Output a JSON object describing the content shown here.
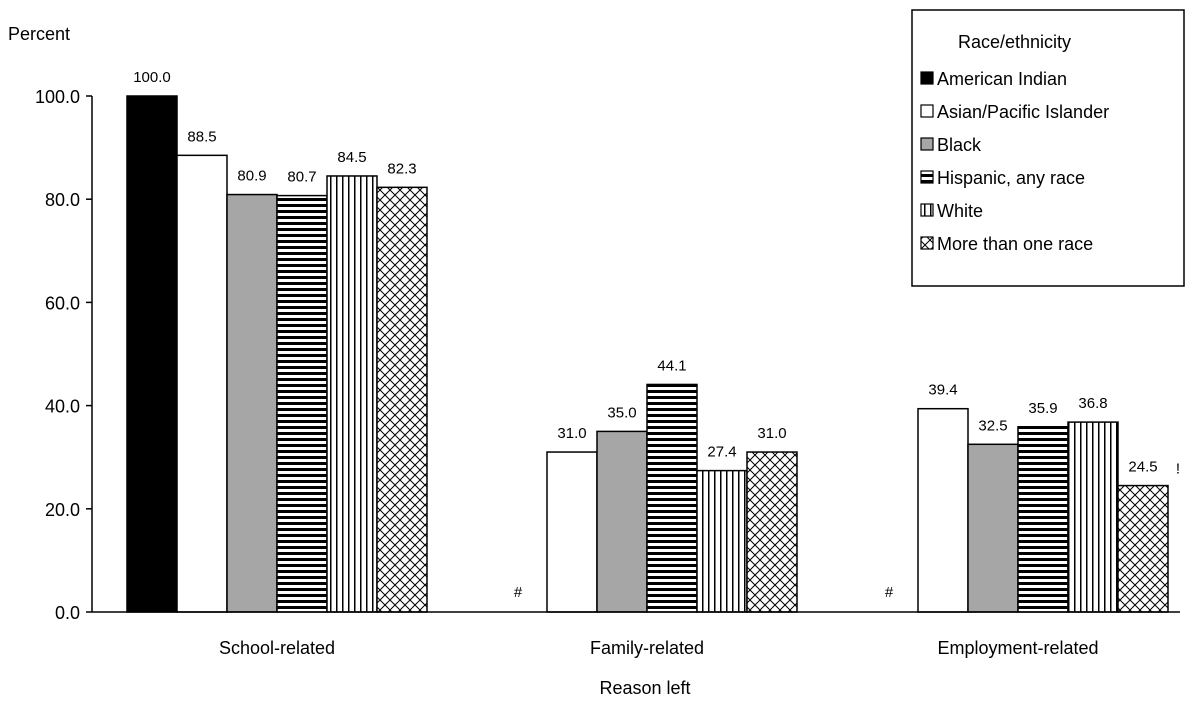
{
  "chart_data": {
    "type": "bar",
    "ylabel": "Percent",
    "xlabel": "Reason left",
    "ylim": [
      0,
      100
    ],
    "yticks": [
      "0.0",
      "20.0",
      "40.0",
      "60.0",
      "80.0",
      "100.0"
    ],
    "grid": false,
    "legend_position": "top-right",
    "legend_title": "Race/ethnicity",
    "categories": [
      "School-related",
      "Family-related",
      "Employment-related"
    ],
    "series": [
      {
        "name": "American Indian",
        "pattern": "solid-black",
        "values": [
          100.0,
          null,
          null
        ],
        "labels": [
          "100.0",
          "#",
          "#"
        ]
      },
      {
        "name": "Asian/Pacific Islander",
        "pattern": "white",
        "values": [
          88.5,
          31.0,
          39.4
        ],
        "labels": [
          "88.5",
          "31.0",
          "39.4"
        ]
      },
      {
        "name": "Black",
        "pattern": "gray",
        "values": [
          80.9,
          35.0,
          32.5
        ],
        "labels": [
          "80.9",
          "35.0",
          "32.5"
        ]
      },
      {
        "name": "Hispanic, any race",
        "pattern": "horizontal-stripes",
        "values": [
          80.7,
          44.1,
          35.9
        ],
        "labels": [
          "80.7",
          "44.1",
          "35.9"
        ]
      },
      {
        "name": "White",
        "pattern": "vertical-stripes",
        "values": [
          84.5,
          27.4,
          36.8
        ],
        "labels": [
          "84.5",
          "27.4",
          "36.8"
        ]
      },
      {
        "name": "More than one race",
        "pattern": "crosshatch",
        "values": [
          82.3,
          31.0,
          24.5
        ],
        "labels": [
          "82.3",
          "31.0",
          "24.5"
        ]
      }
    ],
    "annotations": [
      {
        "category": "Employment-related",
        "series": "More than one race",
        "text": "!"
      }
    ],
    "colors": {
      "black": "#000000",
      "white": "#ffffff",
      "gray": "#a6a6a6",
      "axis": "#000000"
    }
  }
}
